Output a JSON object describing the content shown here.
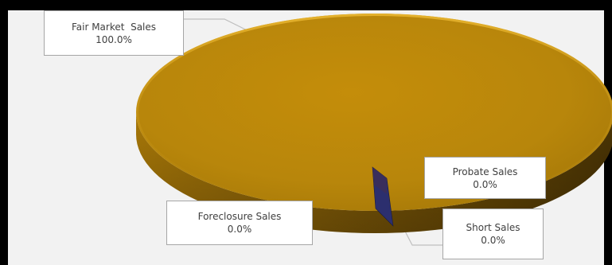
{
  "chart_data": {
    "type": "pie",
    "style": "3d",
    "categories": [
      "Fair Market  Sales",
      "Probate Sales",
      "Short Sales",
      "Foreclosure Sales"
    ],
    "values": [
      100.0,
      0.0,
      0.0,
      0.0
    ],
    "value_labels": [
      "100.0%",
      "0.0%",
      "0.0%",
      "0.0%"
    ],
    "colors": [
      "#b8860b",
      "#3b2f5a",
      "#2c2f6e",
      "#5a4a2a"
    ],
    "legend": "none"
  }
}
